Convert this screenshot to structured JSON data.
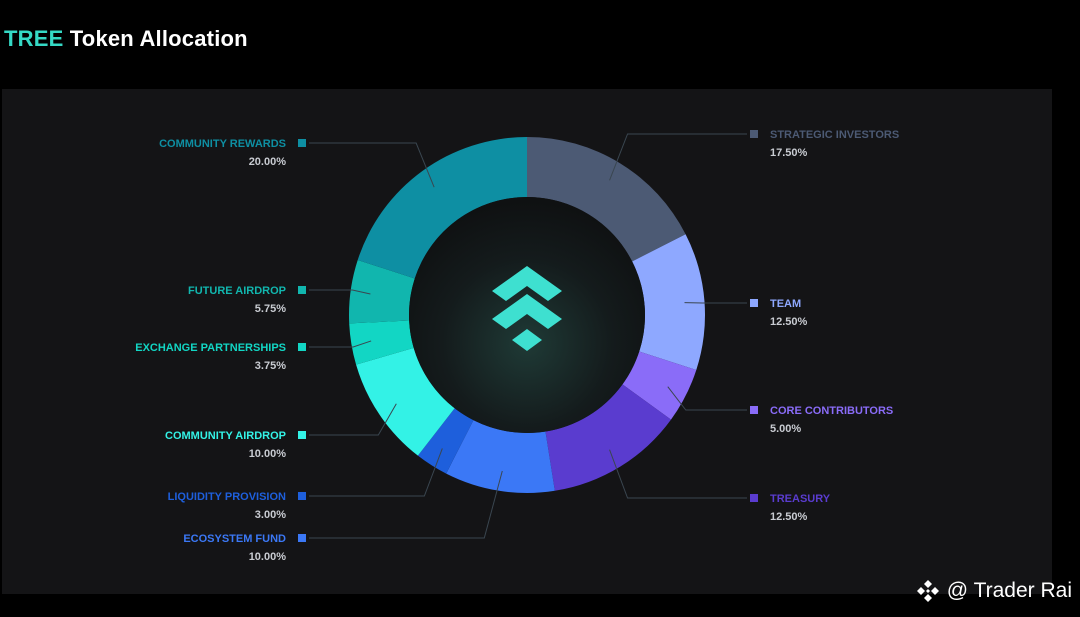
{
  "header": {
    "title_accent": "TREE",
    "title_rest": "Token Allocation"
  },
  "watermark": {
    "text": "@ Trader Rai",
    "icon": "binance-diamond-icon"
  },
  "center_logo": {
    "icon": "chevron-stack-logo-icon",
    "color": "#3ee0d0"
  },
  "chart_data": {
    "type": "pie",
    "style": "donut",
    "title": "TREE Token Allocation",
    "unit": "%",
    "slices": [
      {
        "label": "STRATEGIC INVESTORS",
        "value": 17.5,
        "display": "17.50%",
        "color": "#4c5a74",
        "side": "right"
      },
      {
        "label": "TEAM",
        "value": 12.5,
        "display": "12.50%",
        "color": "#8ea8ff",
        "side": "right"
      },
      {
        "label": "CORE CONTRIBUTORS",
        "value": 5.0,
        "display": "5.00%",
        "color": "#8a6cf8",
        "side": "right"
      },
      {
        "label": "TREASURY",
        "value": 12.5,
        "display": "12.50%",
        "color": "#5a3ccf",
        "side": "right"
      },
      {
        "label": "ECOSYSTEM FUND",
        "value": 10.0,
        "display": "10.00%",
        "color": "#3b78f6",
        "side": "left"
      },
      {
        "label": "LIQUIDITY PROVISION",
        "value": 3.0,
        "display": "3.00%",
        "color": "#1e5fdc",
        "side": "left"
      },
      {
        "label": "COMMUNITY AIRDROP",
        "value": 10.0,
        "display": "10.00%",
        "color": "#33f2e6",
        "side": "left"
      },
      {
        "label": "EXCHANGE PARTNERSHIPS",
        "value": 3.75,
        "display": "3.75%",
        "color": "#12d6c4",
        "side": "left"
      },
      {
        "label": "FUTURE AIRDROP",
        "value": 5.75,
        "display": "5.75%",
        "color": "#11b6ae",
        "side": "left"
      },
      {
        "label": "COMMUNITY REWARDS",
        "value": 20.0,
        "display": "20.00%",
        "color": "#0e8fa3",
        "side": "left"
      }
    ]
  }
}
